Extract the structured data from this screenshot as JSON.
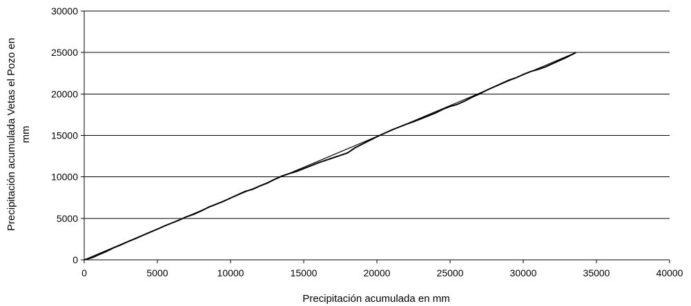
{
  "chart_data": {
    "type": "line",
    "title": "",
    "xlabel": "Precipitación acumulada en mm",
    "ylabel_lines": [
      "Precipitación acumulada Vetas el Pozo en",
      "mm"
    ],
    "xlim": [
      0,
      40000
    ],
    "ylim": [
      0,
      30000
    ],
    "x_ticks": [
      0,
      5000,
      10000,
      15000,
      20000,
      25000,
      30000,
      35000,
      40000
    ],
    "y_ticks": [
      0,
      5000,
      10000,
      15000,
      20000,
      25000,
      30000
    ],
    "grid": "horizontal",
    "legend": "none",
    "series": [
      {
        "style": "trend",
        "color": "#000000",
        "points": [
          [
            0,
            0
          ],
          [
            33600,
            25000
          ]
        ]
      },
      {
        "style": "data",
        "color": "#000000",
        "points": [
          [
            0,
            0
          ],
          [
            300,
            150
          ],
          [
            600,
            300
          ],
          [
            1000,
            620
          ],
          [
            1500,
            1000
          ],
          [
            2000,
            1450
          ],
          [
            2500,
            1800
          ],
          [
            3000,
            2200
          ],
          [
            3500,
            2560
          ],
          [
            4000,
            2950
          ],
          [
            4500,
            3330
          ],
          [
            5000,
            3700
          ],
          [
            5500,
            4100
          ],
          [
            6000,
            4450
          ],
          [
            6500,
            4800
          ],
          [
            7000,
            5200
          ],
          [
            7500,
            5500
          ],
          [
            8000,
            5900
          ],
          [
            8500,
            6350
          ],
          [
            9000,
            6700
          ],
          [
            9500,
            7050
          ],
          [
            10000,
            7450
          ],
          [
            10500,
            7850
          ],
          [
            11000,
            8250
          ],
          [
            11500,
            8500
          ],
          [
            12000,
            8900
          ],
          [
            12500,
            9250
          ],
          [
            13000,
            9700
          ],
          [
            13500,
            10100
          ],
          [
            14000,
            10400
          ],
          [
            14500,
            10650
          ],
          [
            15000,
            11000
          ],
          [
            15500,
            11350
          ],
          [
            16000,
            11700
          ],
          [
            16500,
            12000
          ],
          [
            17000,
            12300
          ],
          [
            17500,
            12600
          ],
          [
            18000,
            12900
          ],
          [
            18500,
            13500
          ],
          [
            19000,
            13950
          ],
          [
            19500,
            14400
          ],
          [
            20000,
            14850
          ],
          [
            20500,
            15250
          ],
          [
            21000,
            15650
          ],
          [
            21500,
            16000
          ],
          [
            22000,
            16350
          ],
          [
            22500,
            16650
          ],
          [
            23000,
            17000
          ],
          [
            23500,
            17350
          ],
          [
            24000,
            17700
          ],
          [
            24500,
            18150
          ],
          [
            25000,
            18500
          ],
          [
            25500,
            18750
          ],
          [
            26000,
            19150
          ],
          [
            26500,
            19600
          ],
          [
            27000,
            20000
          ],
          [
            27500,
            20450
          ],
          [
            28000,
            20850
          ],
          [
            28500,
            21250
          ],
          [
            29000,
            21650
          ],
          [
            29500,
            21950
          ],
          [
            30000,
            22350
          ],
          [
            30500,
            22700
          ],
          [
            31000,
            22950
          ],
          [
            31500,
            23250
          ],
          [
            32000,
            23650
          ],
          [
            32500,
            24050
          ],
          [
            33000,
            24450
          ],
          [
            33600,
            25000
          ]
        ]
      }
    ]
  }
}
